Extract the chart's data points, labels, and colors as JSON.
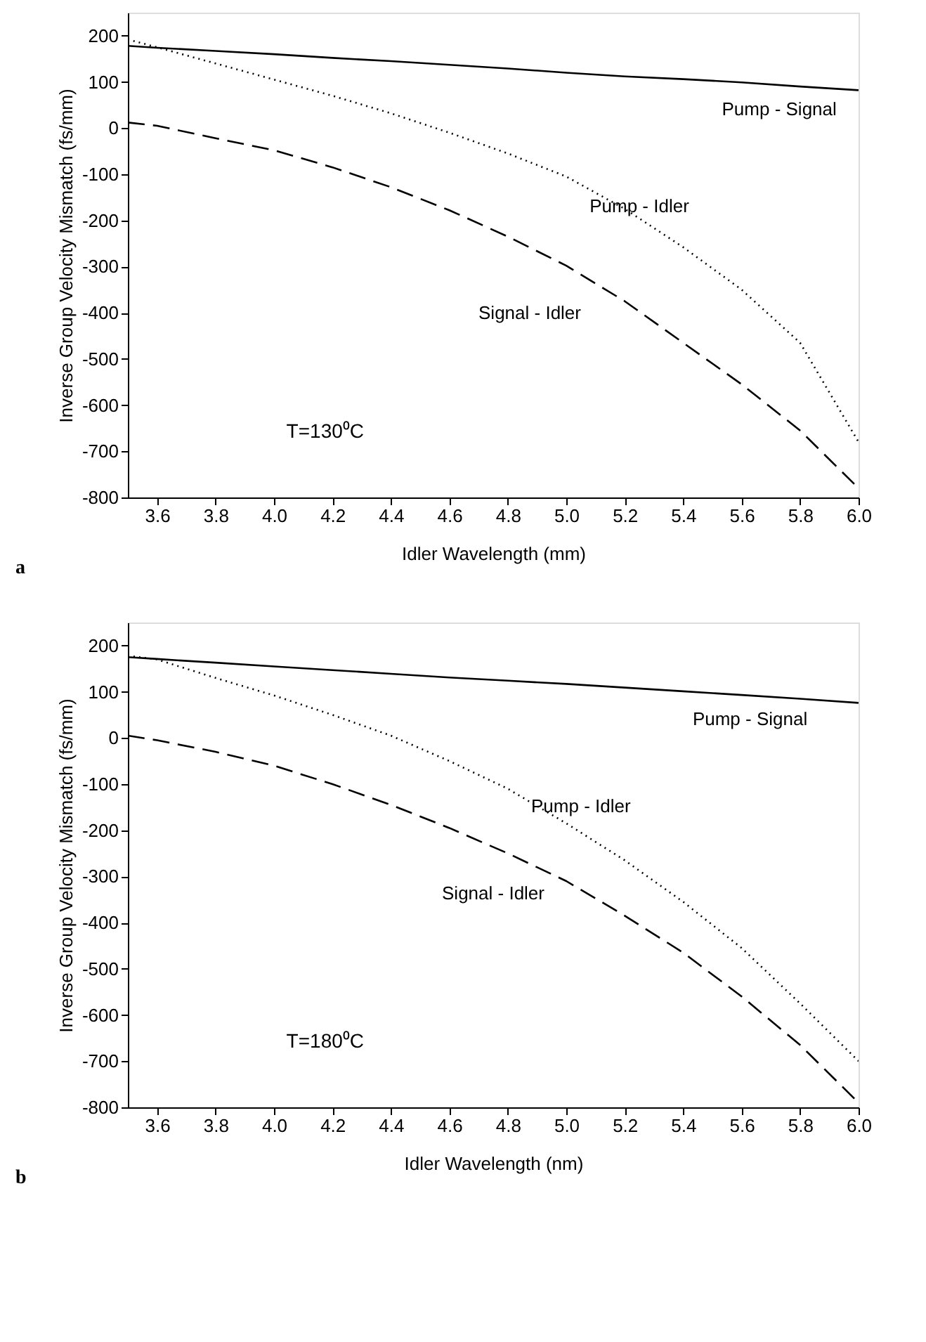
{
  "chart_data": [
    {
      "type": "line",
      "xlabel": "Idler Wavelength (mm)",
      "ylabel": "Inverse Group Velocity Mismatch (fs/mm)",
      "annotations": [
        "T=130⁰C",
        "a"
      ],
      "x": [
        3.5,
        3.6,
        3.8,
        4.0,
        4.2,
        4.4,
        4.6,
        4.8,
        5.0,
        5.2,
        5.4,
        5.6,
        5.8,
        6.0
      ],
      "series": [
        {
          "name": "Pump - Signal",
          "color": "#000000",
          "line_style": "solid",
          "values": [
            178,
            174,
            167,
            160,
            152,
            145,
            137,
            129,
            120,
            112,
            106,
            99,
            90,
            82
          ]
        },
        {
          "name": "Pump - Idler",
          "color": "#000000",
          "line_style": "dotted",
          "values": [
            192,
            175,
            140,
            105,
            70,
            32,
            -10,
            -55,
            -105,
            -175,
            -258,
            -350,
            -465,
            -680
          ]
        },
        {
          "name": "Signal - Idler",
          "color": "#000000",
          "line_style": "dashed",
          "values": [
            12,
            5,
            -22,
            -48,
            -85,
            -128,
            -178,
            -235,
            -298,
            -375,
            -465,
            -555,
            -655,
            -780
          ]
        }
      ],
      "xlim": [
        3.5,
        6.0
      ],
      "ylim": [
        -800,
        250
      ],
      "xticks": [
        3.6,
        3.8,
        {
          "value": 4.0,
          "label": "4.0"
        },
        4.2,
        4.4,
        4.6,
        4.8,
        {
          "value": 5.0,
          "label": "5.0"
        },
        5.2,
        5.4,
        5.6,
        5.8,
        {
          "value": 6.0,
          "label": "6.0"
        }
      ],
      "yticks": [
        -800,
        -700,
        -600,
        -500,
        -400,
        -300,
        -200,
        -100,
        0,
        100,
        200
      ],
      "grid": false
    },
    {
      "type": "line",
      "xlabel": "Idler Wavelength (nm)",
      "ylabel": "Inverse Group Velocity Mismatch (fs/mm)",
      "annotations": [
        "T=180⁰C",
        "b"
      ],
      "x": [
        3.5,
        3.6,
        3.8,
        4.0,
        4.2,
        4.4,
        4.6,
        4.8,
        5.0,
        5.2,
        5.4,
        5.6,
        5.8,
        6.0
      ],
      "series": [
        {
          "name": "Pump - Signal",
          "color": "#000000",
          "line_style": "solid",
          "values": [
            175,
            171,
            163,
            155,
            147,
            139,
            131,
            124,
            117,
            109,
            101,
            93,
            85,
            76
          ]
        },
        {
          "name": "Pump - Idler",
          "color": "#000000",
          "line_style": "dotted",
          "values": [
            178,
            170,
            130,
            92,
            50,
            5,
            -50,
            -110,
            -185,
            -265,
            -355,
            -455,
            -575,
            -700
          ]
        },
        {
          "name": "Signal - Idler",
          "color": "#000000",
          "line_style": "dashed",
          "values": [
            5,
            -5,
            -30,
            -60,
            -100,
            -145,
            -195,
            -250,
            -310,
            -385,
            -465,
            -560,
            -665,
            -790
          ]
        }
      ],
      "xlim": [
        3.5,
        6.0
      ],
      "ylim": [
        -800,
        250
      ],
      "xticks": [
        3.6,
        3.8,
        {
          "value": 4.0,
          "label": "4.0"
        },
        4.2,
        4.4,
        4.6,
        4.8,
        {
          "value": 5.0,
          "label": "5.0"
        },
        5.2,
        5.4,
        5.6,
        5.8,
        {
          "value": 6.0,
          "label": "6.0"
        }
      ],
      "yticks": [
        -800,
        -700,
        -600,
        -500,
        -400,
        -300,
        -200,
        -100,
        0,
        100,
        200
      ],
      "grid": false
    }
  ]
}
